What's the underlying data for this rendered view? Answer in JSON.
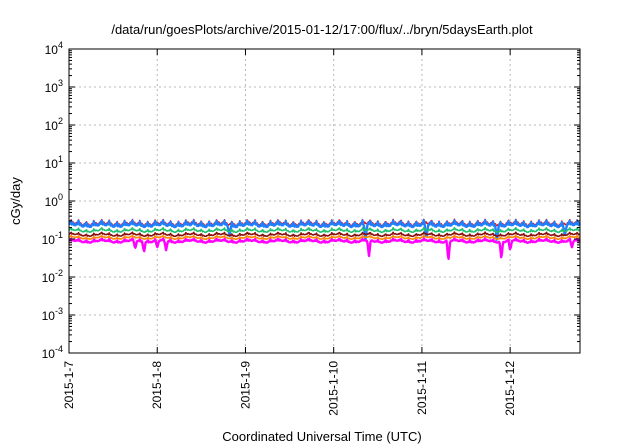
{
  "chart_data": {
    "type": "line",
    "title": "/data/run/goesPlots/archive/2015-01-12/17:00/flux/../bryn/5daysEarth.plot",
    "xlabel": "Coordinated Universal Time (UTC)",
    "ylabel": "cGy/day",
    "yscale": "log",
    "ylim": [
      0.0001,
      10000
    ],
    "xlim": [
      "2015-01-07T00:00",
      "2015-01-12T19:00"
    ],
    "grid": true,
    "legend": "none",
    "y_ticks": [
      {
        "value": 0.0001,
        "base": "10",
        "exp": "-4"
      },
      {
        "value": 0.001,
        "base": "10",
        "exp": "-3"
      },
      {
        "value": 0.01,
        "base": "10",
        "exp": "-2"
      },
      {
        "value": 0.1,
        "base": "10",
        "exp": "-1"
      },
      {
        "value": 1,
        "base": "10",
        "exp": "0"
      },
      {
        "value": 10,
        "base": "10",
        "exp": "1"
      },
      {
        "value": 100,
        "base": "10",
        "exp": "2"
      },
      {
        "value": 1000,
        "base": "10",
        "exp": "3"
      },
      {
        "value": 10000,
        "base": "10",
        "exp": "4"
      }
    ],
    "x_ticks": [
      "2015-1-7",
      "2015-1-8",
      "2015-1-9",
      "2015-1-10",
      "2015-1-11",
      "2015-1-12"
    ],
    "series": [
      {
        "color": "#e8101a",
        "base": 0.24,
        "amp": 0.3,
        "dips": []
      },
      {
        "color": "#1e7fff",
        "base": 0.22,
        "amp": 0.34,
        "dips": [
          [
            1.82,
            0.12
          ],
          [
            3.36,
            0.09
          ],
          [
            4.05,
            0.1
          ],
          [
            4.85,
            0.09
          ],
          [
            5.62,
            0.12
          ]
        ]
      },
      {
        "color": "#20c070",
        "base": 0.16,
        "amp": 0.18,
        "dips": []
      },
      {
        "color": "#8a1010",
        "base": 0.125,
        "amp": 0.15,
        "dips": []
      },
      {
        "color": "#ff8800",
        "base": 0.105,
        "amp": 0.12,
        "dips": []
      },
      {
        "color": "#ff00ff",
        "base": 0.085,
        "amp": 0.15,
        "dips": [
          [
            0.75,
            0.055
          ],
          [
            0.85,
            0.045
          ],
          [
            1.0,
            0.06
          ],
          [
            1.1,
            0.05
          ],
          [
            3.4,
            0.035
          ],
          [
            4.3,
            0.026
          ],
          [
            4.9,
            0.03
          ],
          [
            5.0,
            0.05
          ],
          [
            5.7,
            0.06
          ]
        ]
      }
    ]
  }
}
